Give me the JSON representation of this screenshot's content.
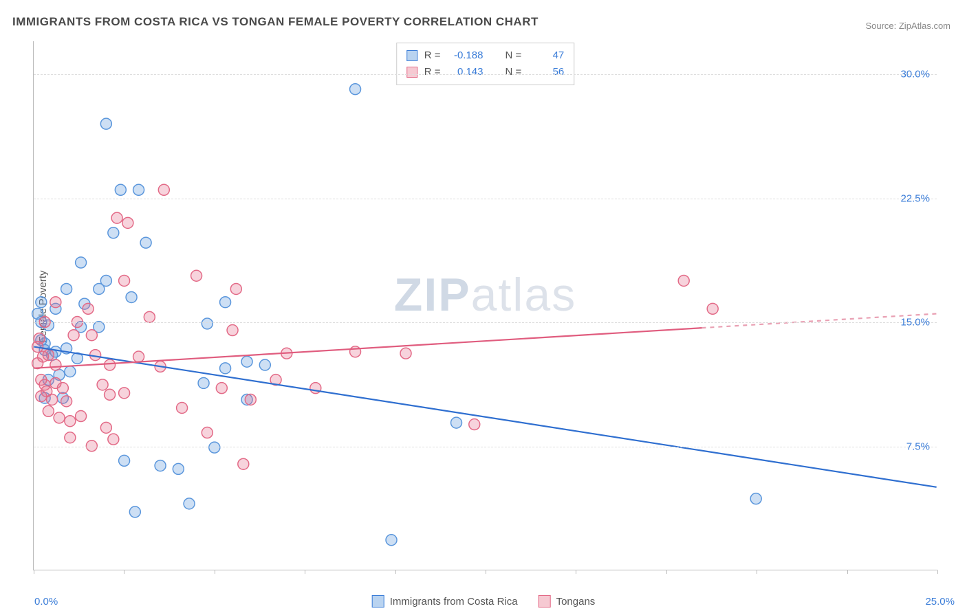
{
  "title": "IMMIGRANTS FROM COSTA RICA VS TONGAN FEMALE POVERTY CORRELATION CHART",
  "source_label": "Source: ZipAtlas.com",
  "watermark": {
    "bold": "ZIP",
    "rest": "atlas"
  },
  "y_axis_label": "Female Poverty",
  "chart": {
    "type": "scatter-with-trend",
    "background_color": "#ffffff",
    "grid_color": "#dddddd",
    "axis_color": "#bbbbbb",
    "label_color": "#3b7dd8",
    "xlim": [
      0,
      25
    ],
    "ylim": [
      0,
      32
    ],
    "y_ticks": [
      {
        "value": 7.5,
        "label": "7.5%"
      },
      {
        "value": 15.0,
        "label": "15.0%"
      },
      {
        "value": 22.5,
        "label": "22.5%"
      },
      {
        "value": 30.0,
        "label": "30.0%"
      }
    ],
    "x_tick_left": "0.0%",
    "x_tick_right": "25.0%",
    "x_tick_marks": [
      0,
      2.5,
      5,
      7.5,
      10,
      12.5,
      15,
      17.5,
      20,
      22.5,
      25
    ],
    "marker_radius": 8,
    "marker_stroke_width": 1.5,
    "marker_fill_opacity": 0.25,
    "trend_line_width": 2.2
  },
  "series": [
    {
      "id": "costa_rica",
      "label": "Immigrants from Costa Rica",
      "swatch_fill": "#b9d3f0",
      "swatch_stroke": "#3b7dd8",
      "marker_fill": "rgba(90,150,220,0.3)",
      "marker_stroke": "#5a96dc",
      "trend_stroke": "#2f6fd0",
      "trend_dash_stroke": "#2f6fd0",
      "R": "-0.188",
      "N": "47",
      "trend": {
        "x1": 0,
        "y1": 13.5,
        "x2": 25,
        "y2": 5.0,
        "solid_max_x": 25
      },
      "points": [
        [
          0.1,
          15.5
        ],
        [
          0.2,
          15.0
        ],
        [
          0.2,
          16.2
        ],
        [
          0.3,
          13.3
        ],
        [
          0.3,
          13.7
        ],
        [
          0.5,
          13.0
        ],
        [
          0.4,
          14.8
        ],
        [
          0.6,
          15.8
        ],
        [
          0.6,
          13.2
        ],
        [
          0.4,
          11.5
        ],
        [
          0.7,
          11.8
        ],
        [
          0.9,
          13.4
        ],
        [
          0.3,
          10.4
        ],
        [
          0.8,
          10.4
        ],
        [
          1.3,
          14.7
        ],
        [
          1.0,
          12.0
        ],
        [
          1.2,
          12.8
        ],
        [
          1.8,
          14.7
        ],
        [
          1.4,
          16.1
        ],
        [
          0.9,
          17.0
        ],
        [
          2.0,
          17.5
        ],
        [
          2.7,
          16.5
        ],
        [
          1.3,
          18.6
        ],
        [
          1.8,
          17.0
        ],
        [
          2.4,
          23.0
        ],
        [
          2.9,
          23.0
        ],
        [
          3.1,
          19.8
        ],
        [
          2.2,
          20.4
        ],
        [
          2.0,
          27.0
        ],
        [
          8.9,
          29.1
        ],
        [
          5.3,
          16.2
        ],
        [
          5.3,
          12.2
        ],
        [
          5.9,
          12.6
        ],
        [
          4.7,
          11.3
        ],
        [
          5.9,
          10.3
        ],
        [
          5.0,
          7.4
        ],
        [
          4.0,
          6.1
        ],
        [
          2.5,
          6.6
        ],
        [
          3.5,
          6.3
        ],
        [
          2.8,
          3.5
        ],
        [
          4.3,
          4.0
        ],
        [
          9.9,
          1.8
        ],
        [
          11.7,
          8.9
        ],
        [
          6.4,
          12.4
        ],
        [
          4.8,
          14.9
        ],
        [
          20.0,
          4.3
        ],
        [
          0.2,
          13.9
        ]
      ]
    },
    {
      "id": "tongans",
      "label": "Tongans",
      "swatch_fill": "#f6c9d2",
      "swatch_stroke": "#e36a87",
      "marker_fill": "rgba(230,110,140,0.3)",
      "marker_stroke": "#e36a87",
      "trend_stroke": "#e05c7e",
      "trend_dash_stroke": "#e9a0b3",
      "R": "0.143",
      "N": "56",
      "trend": {
        "x1": 0,
        "y1": 12.2,
        "x2": 25,
        "y2": 15.5,
        "solid_max_x": 18.5
      },
      "points": [
        [
          0.1,
          12.5
        ],
        [
          0.15,
          14.0
        ],
        [
          0.2,
          11.5
        ],
        [
          0.3,
          11.2
        ],
        [
          0.2,
          10.5
        ],
        [
          0.35,
          10.8
        ],
        [
          0.5,
          10.3
        ],
        [
          0.25,
          12.9
        ],
        [
          0.6,
          12.4
        ],
        [
          0.6,
          11.3
        ],
        [
          0.8,
          11.0
        ],
        [
          0.9,
          10.2
        ],
        [
          0.4,
          9.6
        ],
        [
          0.7,
          9.2
        ],
        [
          1.0,
          9.0
        ],
        [
          1.3,
          9.3
        ],
        [
          0.3,
          15.0
        ],
        [
          0.1,
          13.5
        ],
        [
          0.4,
          13.0
        ],
        [
          1.1,
          14.2
        ],
        [
          1.6,
          14.2
        ],
        [
          1.2,
          15.0
        ],
        [
          1.5,
          15.8
        ],
        [
          1.7,
          13.0
        ],
        [
          2.1,
          12.4
        ],
        [
          2.5,
          10.7
        ],
        [
          2.1,
          10.6
        ],
        [
          1.9,
          11.2
        ],
        [
          2.9,
          12.9
        ],
        [
          3.5,
          12.3
        ],
        [
          3.2,
          15.3
        ],
        [
          2.6,
          21.0
        ],
        [
          3.6,
          23.0
        ],
        [
          4.5,
          17.8
        ],
        [
          5.6,
          17.0
        ],
        [
          5.5,
          14.5
        ],
        [
          5.2,
          11.0
        ],
        [
          6.0,
          10.3
        ],
        [
          6.7,
          11.5
        ],
        [
          4.1,
          9.8
        ],
        [
          5.8,
          6.4
        ],
        [
          4.8,
          8.3
        ],
        [
          7.8,
          11.0
        ],
        [
          7.0,
          13.1
        ],
        [
          8.9,
          13.2
        ],
        [
          12.2,
          8.8
        ],
        [
          1.0,
          8.0
        ],
        [
          1.6,
          7.5
        ],
        [
          2.2,
          7.9
        ],
        [
          2.0,
          8.6
        ],
        [
          2.5,
          17.5
        ],
        [
          2.3,
          21.3
        ],
        [
          0.6,
          16.2
        ],
        [
          18.0,
          17.5
        ],
        [
          18.8,
          15.8
        ],
        [
          10.3,
          13.1
        ]
      ]
    }
  ],
  "stats_box": {
    "r_label": "R =",
    "n_label": "N ="
  }
}
